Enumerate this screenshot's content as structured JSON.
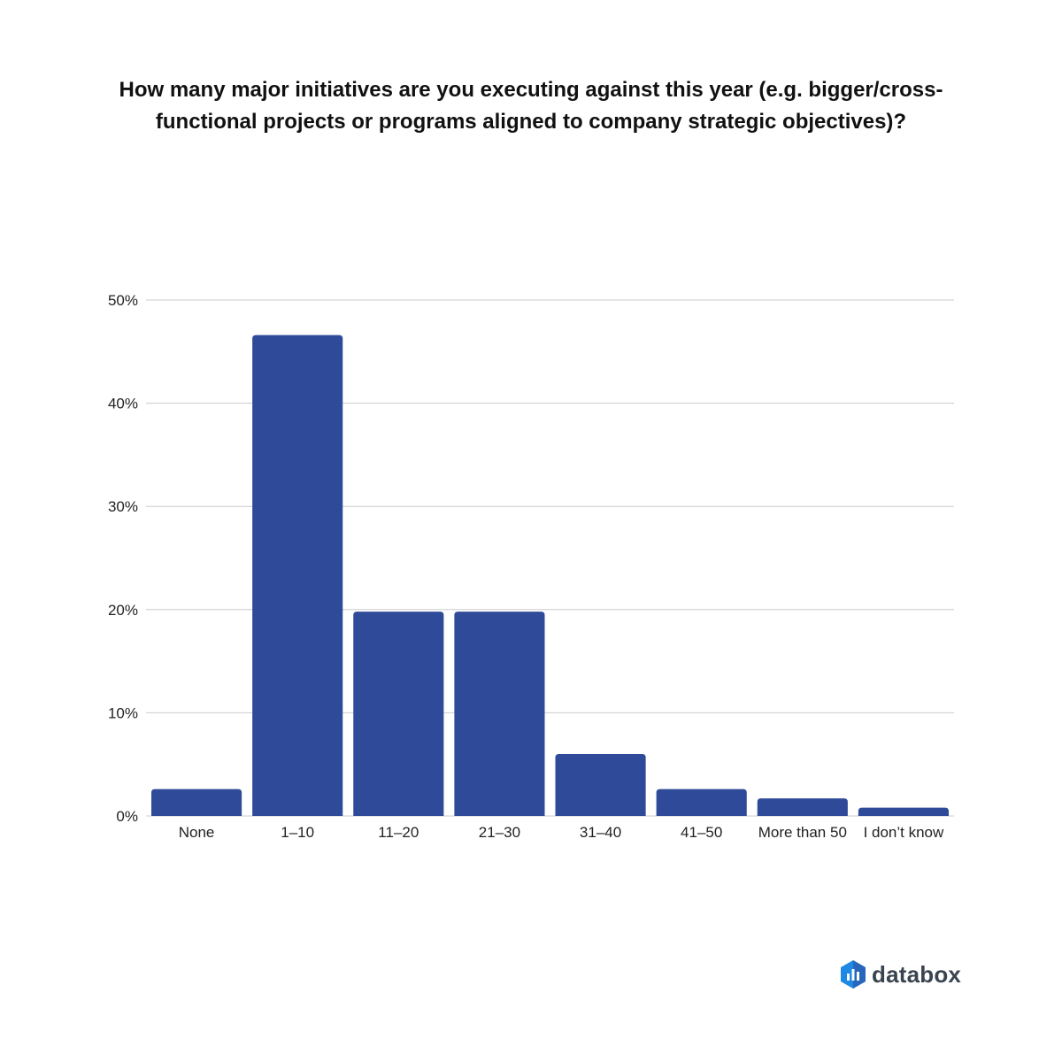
{
  "chart_data": {
    "type": "bar",
    "title": "How many major initiatives are you executing against this year (e.g. bigger/cross-functional projects or programs aligned to company strategic objectives)?",
    "categories": [
      "None",
      "1–10",
      "11–20",
      "21–30",
      "31–40",
      "41–50",
      "More than 50",
      "I don’t know"
    ],
    "values": [
      2.6,
      46.6,
      19.8,
      19.8,
      6.0,
      2.6,
      1.7,
      0.8
    ],
    "ylim": [
      0,
      50
    ],
    "yticks": [
      0,
      10,
      20,
      30,
      40,
      50
    ],
    "ytick_labels": [
      "0%",
      "10%",
      "20%",
      "30%",
      "40%",
      "50%"
    ],
    "xlabel": "",
    "ylabel": "",
    "grid": true,
    "bar_color": "#2f4a98",
    "grid_color": "#cccccc"
  },
  "brand": {
    "name": "databox",
    "icon": "databox-logo-icon",
    "colors": [
      "#1e88e5",
      "#2f4a98"
    ]
  }
}
